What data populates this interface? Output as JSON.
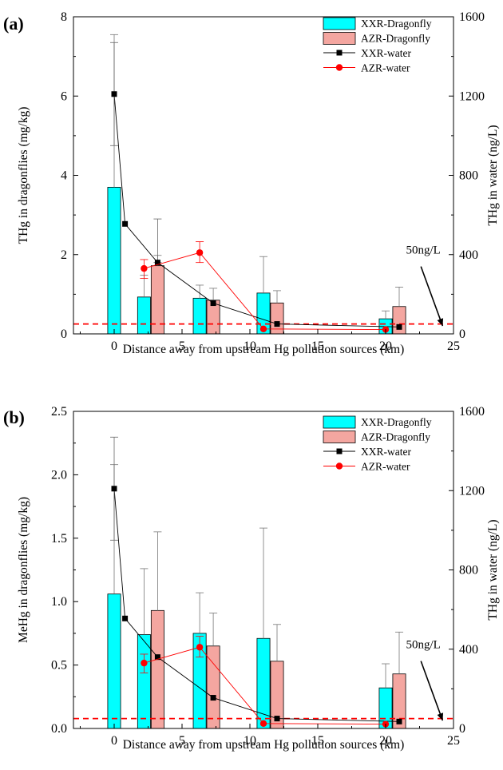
{
  "chart_data": [
    {
      "panel_label": "(a)",
      "type": "bar",
      "xlabel": "Distance away from upstream Hg pollution sources  (km)",
      "ylabel_left": "THg in dragonflies  (mg/kg)",
      "ylabel_right": "THg in water   (ng/L)",
      "x_ticks": [
        0,
        5,
        10,
        15,
        20,
        25
      ],
      "x_tick_labels": [
        "0",
        "5",
        "10",
        "15",
        "20",
        "25"
      ],
      "y_left_ticks": [
        0,
        2,
        4,
        6,
        8
      ],
      "y_left_tick_labels": [
        "0",
        "2",
        "4",
        "6",
        "8"
      ],
      "y_right_ticks": [
        0,
        400,
        800,
        1200,
        1600
      ],
      "y_right_tick_labels": [
        "0",
        "400",
        "800",
        "1200",
        "1600"
      ],
      "xlim": [
        -3,
        25
      ],
      "ylim_left": [
        0,
        8
      ],
      "ylim_right": [
        0,
        1600
      ],
      "bar_series": [
        {
          "name": "XXR-Dragonfly",
          "color": "#00FFFF",
          "x": [
            0,
            2.2,
            6.3,
            11,
            20
          ],
          "values": [
            3.7,
            0.93,
            0.9,
            1.03,
            0.38
          ],
          "err": [
            3.85,
            0.55,
            0.33,
            0.92,
            0.2
          ]
        },
        {
          "name": "AZR-Dragonfly",
          "color": "#F4A6A0",
          "x": [
            3.2,
            7.3,
            12,
            21
          ],
          "values": [
            1.72,
            0.85,
            0.78,
            0.69
          ],
          "err": [
            0.26,
            0.3,
            0.31,
            0.49
          ]
        }
      ],
      "line_series": [
        {
          "name": "XXR-water",
          "color": "#000000",
          "marker": "square",
          "x": [
            0,
            0.8,
            3.2,
            7.3,
            12,
            21
          ],
          "y": [
            1210,
            555,
            360,
            155,
            50,
            35
          ],
          "err_up": [
            260,
            0,
            220,
            0,
            0,
            0
          ],
          "err_down": [
            260,
            0,
            0,
            0,
            0,
            0
          ]
        },
        {
          "name": "AZR-water",
          "color": "#FF0000",
          "marker": "circle",
          "x": [
            2.2,
            6.3,
            11,
            20
          ],
          "y": [
            330,
            410,
            25,
            22
          ],
          "err_up": [
            45,
            55,
            0,
            0
          ],
          "err_down": [
            50,
            50,
            0,
            0
          ]
        }
      ],
      "reference_line": {
        "value_right": 50,
        "color": "#FF0000",
        "label": "50ng/L"
      },
      "legend_position": "top-right",
      "grid": false
    },
    {
      "panel_label": "(b)",
      "type": "bar",
      "xlabel": "Distance away from upstream Hg pollution sources  (km)",
      "ylabel_left": "MeHg in dragonflies  (mg/kg)",
      "ylabel_right": "THg in water   (ng/L)",
      "x_ticks": [
        0,
        5,
        10,
        15,
        20,
        25
      ],
      "x_tick_labels": [
        "0",
        "5",
        "10",
        "15",
        "20",
        "25"
      ],
      "y_left_ticks": [
        0,
        0.5,
        1.0,
        1.5,
        2.0,
        2.5
      ],
      "y_left_tick_labels": [
        "0.0",
        "0.5",
        "1.0",
        "1.5",
        "2.0",
        "2.5"
      ],
      "y_right_ticks": [
        0,
        400,
        800,
        1200,
        1600
      ],
      "y_right_tick_labels": [
        "0",
        "400",
        "800",
        "1200",
        "1600"
      ],
      "xlim": [
        -3,
        25
      ],
      "ylim_left": [
        0,
        2.5
      ],
      "ylim_right": [
        0,
        1600
      ],
      "bar_series": [
        {
          "name": "XXR-Dragonfly",
          "color": "#00FFFF",
          "x": [
            0,
            2.2,
            6.3,
            11,
            20
          ],
          "values": [
            1.06,
            0.74,
            0.75,
            0.71,
            0.32
          ],
          "err": [
            1.02,
            0.52,
            0.32,
            0.87,
            0.19
          ]
        },
        {
          "name": "AZR-Dragonfly",
          "color": "#F4A6A0",
          "x": [
            3.2,
            7.3,
            12,
            21
          ],
          "values": [
            0.93,
            0.65,
            0.53,
            0.43
          ],
          "err": [
            0.62,
            0.26,
            0.29,
            0.33
          ]
        }
      ],
      "line_series": [
        {
          "name": "XXR-water",
          "color": "#000000",
          "marker": "square",
          "x": [
            0,
            0.8,
            3.2,
            7.3,
            12,
            21
          ],
          "y": [
            1210,
            555,
            360,
            155,
            50,
            35
          ],
          "err_up": [
            260,
            0,
            0,
            0,
            0,
            0
          ],
          "err_down": [
            260,
            0,
            0,
            0,
            0,
            0
          ]
        },
        {
          "name": "AZR-water",
          "color": "#FF0000",
          "marker": "circle",
          "x": [
            2.2,
            6.3,
            11,
            20
          ],
          "y": [
            330,
            410,
            25,
            22
          ],
          "err_up": [
            45,
            55,
            0,
            0
          ],
          "err_down": [
            50,
            50,
            0,
            0
          ]
        }
      ],
      "reference_line": {
        "value_right": 50,
        "color": "#FF0000",
        "label": "50ng/L"
      },
      "legend_position": "top-right",
      "grid": false
    }
  ]
}
